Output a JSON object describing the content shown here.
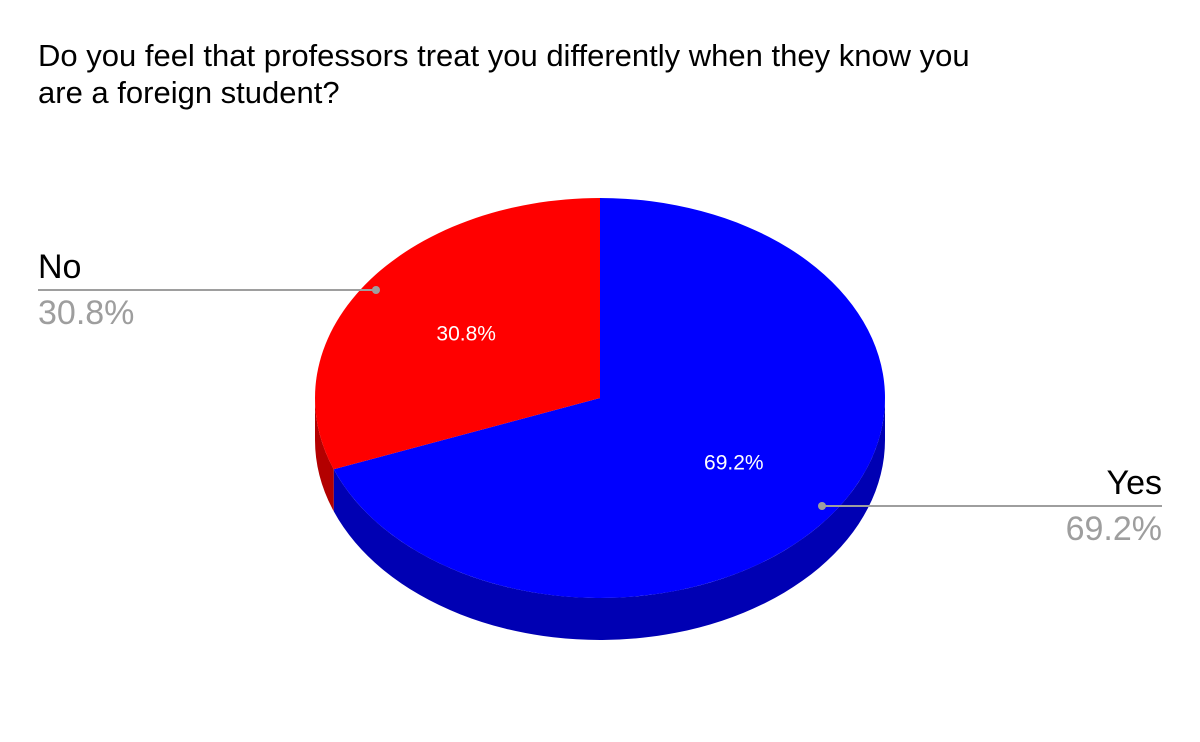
{
  "chart_data": {
    "type": "pie",
    "title": "Do you feel that professors treat you differently when they know you are a foreign student?",
    "title_lines": [
      "Do you feel that professors treat you differently when they know you",
      "are a foreign student?"
    ],
    "slices": [
      {
        "label": "Yes",
        "value": 69.2,
        "value_label": "69.2%",
        "color": "#0000ff",
        "side_color": "#0000b3"
      },
      {
        "label": "No",
        "value": 30.8,
        "value_label": "30.8%",
        "color": "#ff0000",
        "side_color": "#b30000"
      }
    ],
    "style": "3d",
    "legend": "labels-outside-with-leader-lines"
  }
}
